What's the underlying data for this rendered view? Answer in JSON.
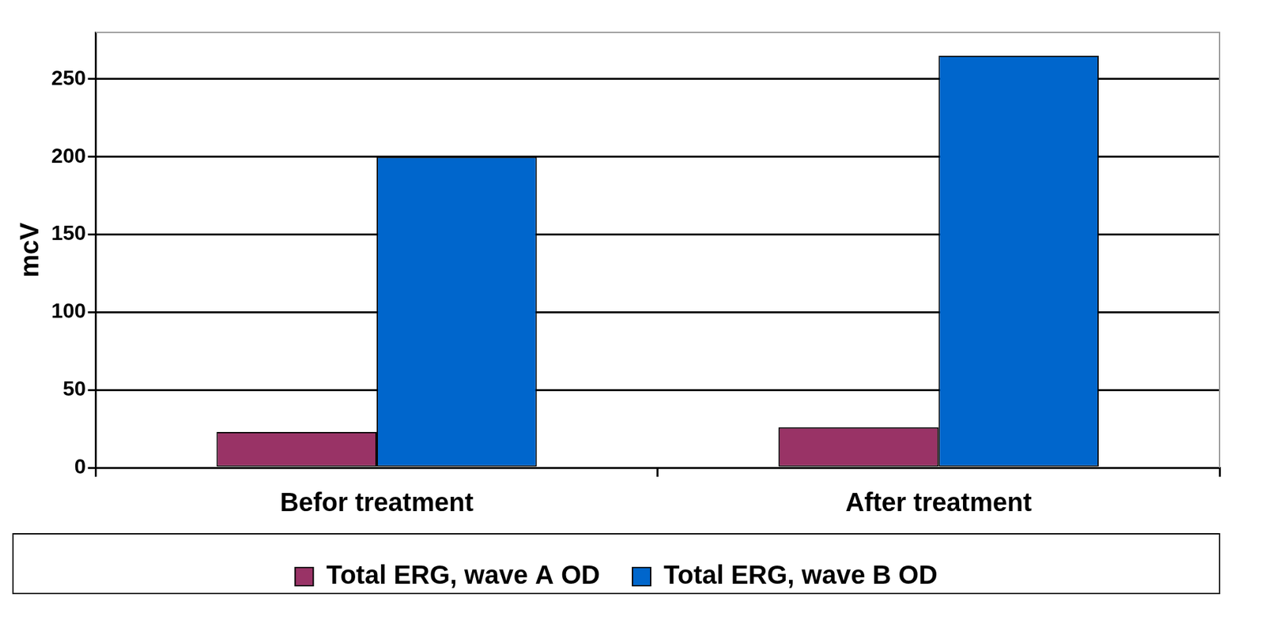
{
  "chart_data": {
    "type": "bar",
    "y_label": "mcV",
    "categories": [
      "Befor treatment",
      "After treatment"
    ],
    "series": [
      {
        "name": "Total ERG, wave A OD",
        "color": "#993366",
        "values": [
          23,
          26
        ]
      },
      {
        "name": "Total ERG, wave B OD",
        "color": "#0066cc",
        "values": [
          200,
          265
        ]
      }
    ],
    "ylim": [
      0,
      280
    ],
    "yticks": [
      0,
      50,
      100,
      150,
      200,
      250
    ],
    "grid": true,
    "legend": "bottom"
  }
}
